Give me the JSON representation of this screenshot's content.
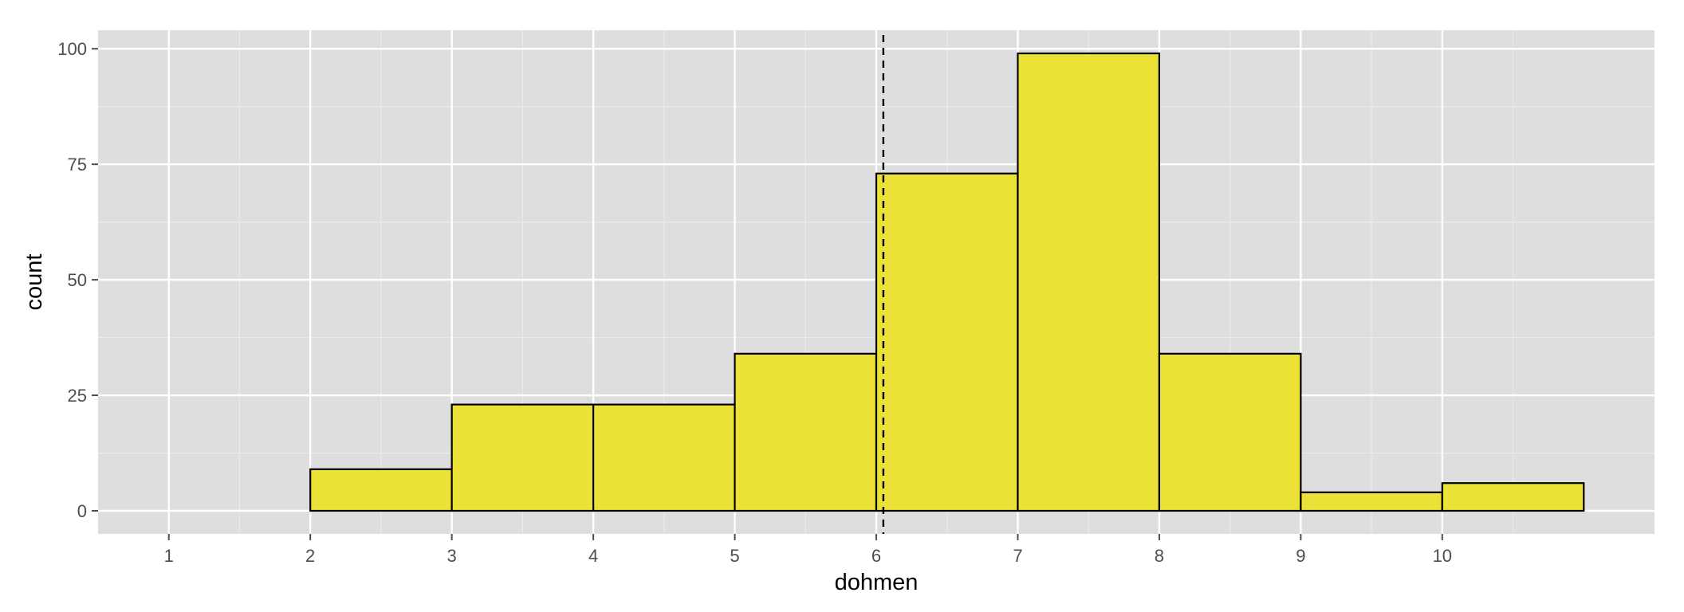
{
  "chart_data": {
    "type": "bar",
    "xlabel": "dohmen",
    "ylabel": "count",
    "xlim": [
      0.5,
      11.5
    ],
    "ylim": [
      -5,
      104
    ],
    "x_ticks": [
      1,
      2,
      3,
      4,
      5,
      6,
      7,
      8,
      9,
      10
    ],
    "y_ticks": [
      0,
      25,
      50,
      75,
      100
    ],
    "bins": [
      {
        "start": 1,
        "end": 2,
        "count": 0
      },
      {
        "start": 2,
        "end": 3,
        "count": 9
      },
      {
        "start": 3,
        "end": 4,
        "count": 23
      },
      {
        "start": 4,
        "end": 5,
        "count": 23
      },
      {
        "start": 5,
        "end": 6,
        "count": 34
      },
      {
        "start": 6,
        "end": 7,
        "count": 73
      },
      {
        "start": 7,
        "end": 8,
        "count": 99
      },
      {
        "start": 8,
        "end": 9,
        "count": 34
      },
      {
        "start": 9,
        "end": 10,
        "count": 4
      },
      {
        "start": 10,
        "end": 11,
        "count": 6
      }
    ],
    "reference_line": {
      "x": 6.05,
      "style": "dashed",
      "color": "#000000"
    },
    "grid": true,
    "colors": {
      "panel_background": "#dedede",
      "grid_major": "#ffffff",
      "grid_minor": "#ebebeb",
      "bar_fill": "#ece136",
      "bar_outline": "#000000"
    }
  }
}
